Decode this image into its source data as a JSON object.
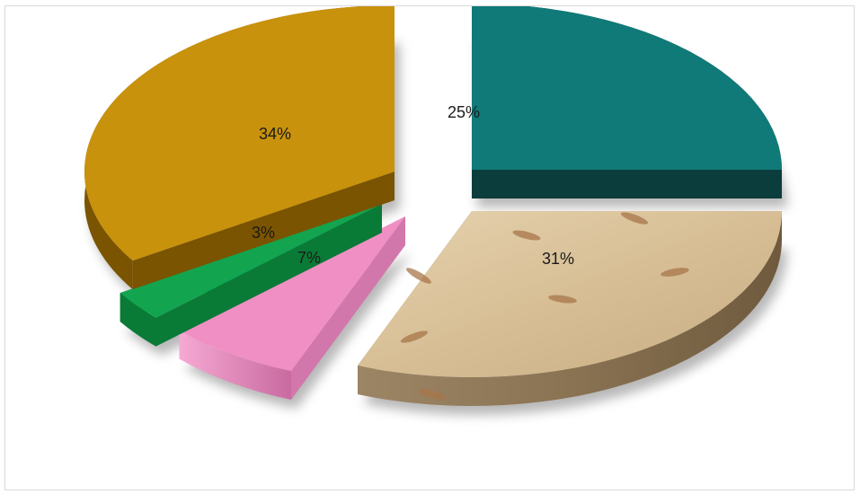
{
  "chart_data": {
    "type": "pie",
    "style": "3d-exploded",
    "categories": [
      "",
      "",
      "",
      "",
      ""
    ],
    "values": [
      25,
      31,
      7,
      3,
      34
    ],
    "labels": [
      "25%",
      "31%",
      "7%",
      "3%",
      "34%"
    ],
    "colors": [
      "#0f7a78",
      "#d9c19b",
      "#f08fc4",
      "#13a44f",
      "#c8920c"
    ],
    "title": "",
    "legend": "none"
  }
}
